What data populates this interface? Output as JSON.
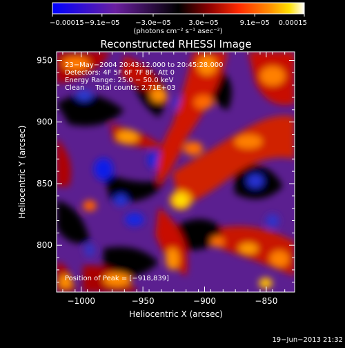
{
  "chart_data": {
    "type": "heatmap",
    "title": "Reconstructed RHESSI Image",
    "xlabel": "Heliocentric X (arcsec)",
    "ylabel": "Heliocentric Y (arcsec)",
    "xlim": [
      -1020,
      -827
    ],
    "ylim": [
      762,
      957
    ],
    "x_ticks": [
      -1000,
      -950,
      -900,
      -850
    ],
    "x_tick_labels": [
      "−1000",
      "−950",
      "−900",
      "−850"
    ],
    "y_ticks": [
      800,
      850,
      900,
      950
    ],
    "y_tick_labels": [
      "800",
      "850",
      "900",
      "950"
    ],
    "colorbar": {
      "range": [
        -0.00015,
        0.00015
      ],
      "ticks": [
        -0.00015,
        -9.1e-05,
        -3e-05,
        3e-05,
        9.1e-05,
        0.00015
      ],
      "tick_labels": [
        "−0.00015",
        "−9.1e−05",
        "−3.0e−05",
        "3.0e−05",
        "9.1e−05",
        "0.00015"
      ],
      "unit_label": "(photons cm⁻² s⁻¹ asec⁻²)",
      "colors": [
        "#0000ff",
        "#6a1fa0",
        "#000000",
        "#8b0000",
        "#ff2a00",
        "#ff8c00",
        "#ffe000",
        "#ffffff"
      ]
    },
    "annotations": [
      "23−May−2004 20:43:12.000 to 20:45:28.000",
      "Detectors: 4F 5F 6F 7F 8F, Att 0",
      "Energy Range: 25.0 − 50.0 keV",
      "Clean     Total counts: 2.71E+03"
    ],
    "peak_label": "Position of Peak = [−918,839]",
    "peak": [
      -918,
      839
    ],
    "grid": false
  },
  "footer": {
    "timestamp": "19−Jun−2013 21:32"
  }
}
